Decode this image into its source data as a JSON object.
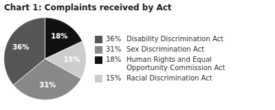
{
  "chart_data": {
    "type": "pie",
    "title": "Chart 1: Complaints received by Act",
    "categories": [
      "Human Rights and Equal\nOpportunity Commission Act",
      "Racial Discrimination Act",
      "Sex Discrimination Act",
      "Disability Discrimination Act"
    ],
    "values": [
      18,
      15,
      31,
      36
    ],
    "value_labels": [
      "18%",
      "15%",
      "31%",
      "36%"
    ],
    "colors": [
      "#111111",
      "#cccccc",
      "#888888",
      "#555555"
    ],
    "data_labels": true,
    "legend": "right"
  }
}
